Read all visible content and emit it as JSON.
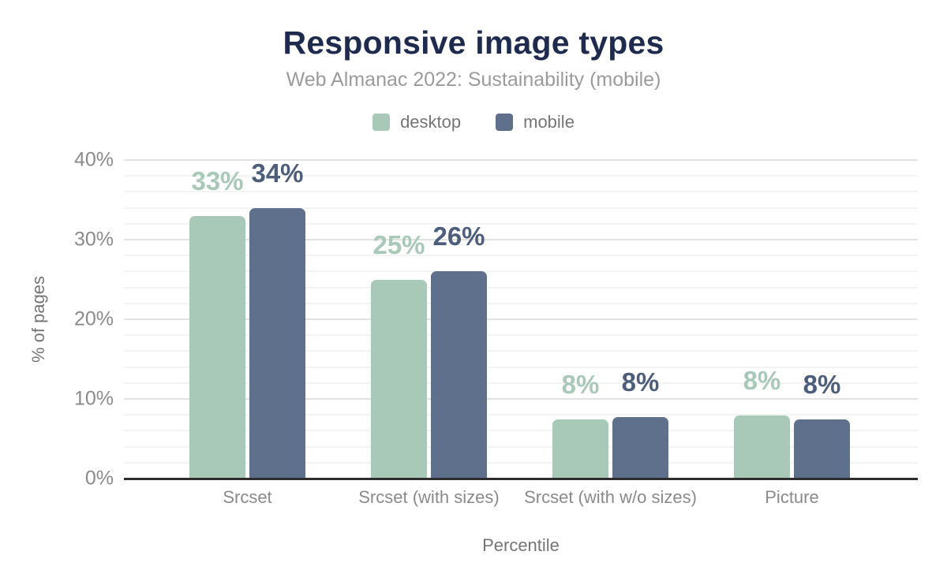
{
  "chart_data": {
    "type": "bar",
    "title": "Responsive image types",
    "subtitle": "Web Almanac 2022: Sustainability (mobile)",
    "xlabel": "Percentile",
    "ylabel": "% of pages",
    "categories": [
      "Srcset",
      "Srcset (with sizes)",
      "Srcset (with w/o sizes)",
      "Picture"
    ],
    "series": [
      {
        "name": "desktop",
        "color": "#a8c9b8",
        "label_color": "#a8c9b8",
        "values": [
          33,
          25,
          8,
          8
        ],
        "labels": [
          "33%",
          "25%",
          "8%",
          "8%"
        ],
        "values_precise": [
          33,
          25,
          7.4,
          7.9
        ]
      },
      {
        "name": "mobile",
        "color": "#5f708c",
        "label_color": "#4c5e7c",
        "values": [
          34,
          26,
          8,
          8
        ],
        "labels": [
          "34%",
          "26%",
          "8%",
          "8%"
        ],
        "values_precise": [
          34,
          26,
          7.7,
          7.4
        ]
      }
    ],
    "y_axis": {
      "min": 0,
      "max": 40,
      "ticks": [
        {
          "value": 0,
          "label": "0%"
        },
        {
          "value": 10,
          "label": "10%"
        },
        {
          "value": 20,
          "label": "20%"
        },
        {
          "value": 30,
          "label": "30%"
        },
        {
          "value": 40,
          "label": "40%"
        }
      ],
      "minor_grid_step": 2,
      "major_grid_step": 10
    },
    "legend_position": "top",
    "grid": true
  },
  "colors": {
    "title": "#1e2b4e",
    "subtitle": "#9b9b9b",
    "axis_text": "#8a8a8a",
    "axis_title_text": "#757575",
    "legend_text": "#757575",
    "gridline_minor": "#f3f3f3",
    "gridline_major": "#e2e2e2",
    "axis_line": "#2d2d2d",
    "background": "#ffffff"
  }
}
